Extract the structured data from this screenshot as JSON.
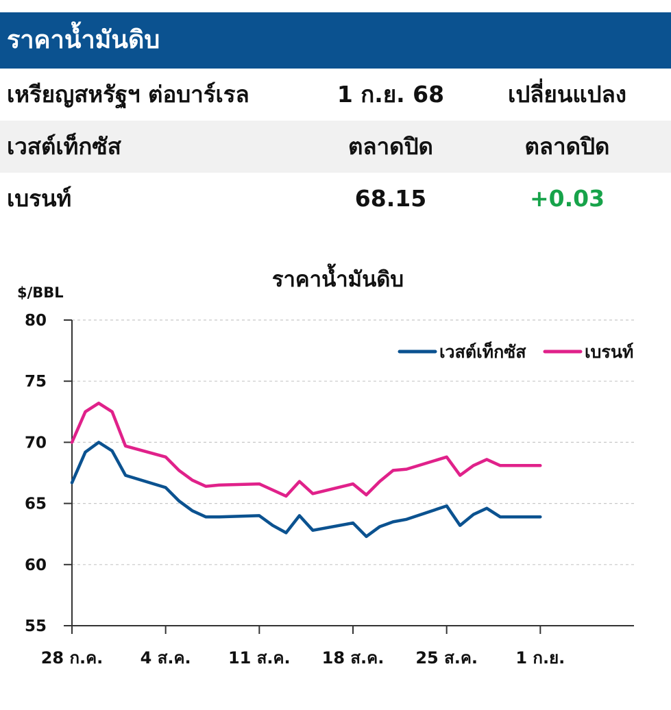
{
  "header": {
    "title": "ราคาน้ำมันดิบ"
  },
  "table": {
    "header": [
      "เหรียญสหรัฐฯ ต่อบาร์เรล",
      "1 ก.ย. 68",
      "เปลี่ยนแปลง"
    ],
    "rows": [
      [
        "เวสต์เท็กซัส",
        "ตลาดปิด",
        "ตลาดปิด"
      ],
      [
        "เบรนท์",
        "68.15",
        "+0.03"
      ]
    ]
  },
  "colors": {
    "banner": "#0b5290",
    "wti": "#0b5290",
    "brent": "#e0218a",
    "positive": "#17a34a"
  },
  "chart_data": {
    "type": "line",
    "title": "ราคาน้ำมันดิบ",
    "ylabel": "$/BBL",
    "xlabel": "",
    "ylim": [
      55,
      80
    ],
    "yticks": [
      55,
      60,
      65,
      70,
      75,
      80
    ],
    "grid": true,
    "legend_position": "top-right",
    "x_tick_labels": [
      {
        "label": "28 ก.ค.",
        "x": 0
      },
      {
        "label": "4 ส.ค.",
        "x": 7
      },
      {
        "label": "11 ส.ค.",
        "x": 14
      },
      {
        "label": "18 ส.ค.",
        "x": 21
      },
      {
        "label": "25 ส.ค.",
        "x": 28
      },
      {
        "label": "1 ก.ย.",
        "x": 35
      }
    ],
    "x": [
      0,
      1,
      2,
      3,
      4,
      7,
      8,
      9,
      10,
      11,
      14,
      15,
      16,
      17,
      18,
      21,
      22,
      23,
      24,
      25,
      28,
      29,
      30,
      31,
      32,
      35
    ],
    "series": [
      {
        "name": "เวสต์เท็กซัส",
        "values": [
          66.7,
          69.2,
          70.0,
          69.3,
          67.3,
          66.3,
          65.2,
          64.4,
          63.9,
          63.9,
          64.0,
          63.2,
          62.6,
          64.0,
          62.8,
          63.4,
          62.3,
          63.1,
          63.5,
          63.7,
          64.8,
          63.2,
          64.1,
          64.6,
          63.9,
          63.9
        ]
      },
      {
        "name": "เบรนท์",
        "values": [
          70.0,
          72.5,
          73.2,
          72.5,
          69.7,
          68.8,
          67.7,
          66.9,
          66.4,
          66.5,
          66.6,
          66.1,
          65.6,
          66.8,
          65.8,
          66.6,
          65.7,
          66.8,
          67.7,
          67.8,
          68.8,
          67.3,
          68.1,
          68.6,
          68.1,
          68.1
        ]
      }
    ]
  }
}
